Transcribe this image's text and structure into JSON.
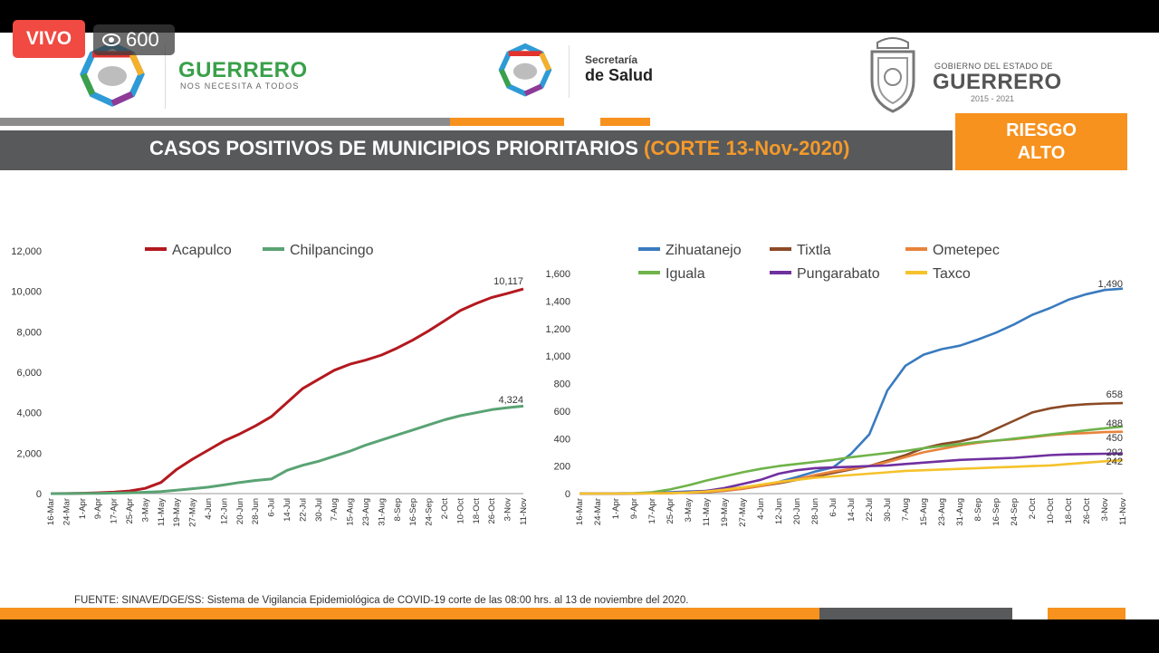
{
  "overlay": {
    "live_label": "VIVO",
    "viewer_count": "600"
  },
  "header": {
    "left_logo_title": "GUERRERO",
    "left_logo_subtitle": "NOS NECESITA A TODOS",
    "center_logo_line1": "Secretaría",
    "center_logo_line2": "de Salud",
    "right_logo_line1": "GOBIERNO DEL ESTADO DE",
    "right_logo_title": "GUERRERO",
    "right_logo_years": "2015 - 2021",
    "title": "CASOS POSITIVOS DE MUNICIPIOS PRIORITARIOS",
    "title_cutoff": "(CORTE 13-Nov-2020)",
    "risk_line1": "RIESGO",
    "risk_line2": "ALTO"
  },
  "colors": {
    "acapulco": "#b3191f",
    "chilpancingo": "#5aa374",
    "zihuatanejo": "#3a7bbf",
    "tixtla": "#8b4a26",
    "ometepec": "#e8833a",
    "iguala": "#6fb34a",
    "pungarabato": "#7030a0",
    "taxco": "#f5c22b",
    "orange": "#f7921e",
    "gray": "#58595b"
  },
  "chart_data": [
    {
      "type": "line",
      "x": [
        "16-Mar",
        "24-Mar",
        "1-Apr",
        "9-Apr",
        "17-Apr",
        "25-Apr",
        "3-May",
        "11-May",
        "19-May",
        "27-May",
        "4-Jun",
        "12-Jun",
        "20-Jun",
        "28-Jun",
        "6-Jul",
        "14-Jul",
        "22-Jul",
        "30-Jul",
        "7-Aug",
        "15-Aug",
        "23-Aug",
        "31-Aug",
        "8-Sep",
        "16-Sep",
        "24-Sep",
        "2-Oct",
        "10-Oct",
        "18-Oct",
        "26-Oct",
        "3-Nov",
        "11-Nov"
      ],
      "series": [
        {
          "name": "Acapulco",
          "values": [
            0,
            5,
            20,
            40,
            70,
            130,
            260,
            550,
            1200,
            1700,
            2150,
            2600,
            2950,
            3350,
            3800,
            4500,
            5200,
            5650,
            6100,
            6400,
            6600,
            6850,
            7200,
            7600,
            8050,
            8550,
            9050,
            9400,
            9700,
            9900,
            10117
          ]
        },
        {
          "name": "Chilpancingo",
          "values": [
            0,
            2,
            8,
            15,
            25,
            40,
            65,
            100,
            170,
            240,
            320,
            430,
            550,
            650,
            720,
            1150,
            1400,
            1600,
            1850,
            2100,
            2400,
            2650,
            2900,
            3150,
            3400,
            3650,
            3850,
            4000,
            4150,
            4250,
            4324
          ]
        }
      ],
      "end_labels": [
        "10,117",
        "4,324"
      ],
      "ylim": [
        0,
        12000
      ],
      "yticks": [
        "0",
        "2,000",
        "4,000",
        "6,000",
        "8,000",
        "10,000",
        "12,000"
      ],
      "legend": "top"
    },
    {
      "type": "line",
      "x": [
        "16-Mar",
        "24-Mar",
        "1-Apr",
        "9-Apr",
        "17-Apr",
        "25-Apr",
        "3-May",
        "11-May",
        "19-May",
        "27-May",
        "4-Jun",
        "12-Jun",
        "20-Jun",
        "28-Jun",
        "6-Jul",
        "14-Jul",
        "22-Jul",
        "30-Jul",
        "7-Aug",
        "15-Aug",
        "23-Aug",
        "31-Aug",
        "8-Sep",
        "16-Sep",
        "24-Sep",
        "2-Oct",
        "10-Oct",
        "18-Oct",
        "26-Oct",
        "3-Nov",
        "11-Nov"
      ],
      "series": [
        {
          "name": "Zihuatanejo",
          "values": [
            0,
            0,
            1,
            2,
            5,
            10,
            15,
            20,
            30,
            45,
            60,
            85,
            120,
            160,
            190,
            290,
            430,
            750,
            930,
            1010,
            1050,
            1075,
            1120,
            1170,
            1230,
            1300,
            1350,
            1410,
            1450,
            1480,
            1490
          ]
        },
        {
          "name": "Tixtla",
          "values": [
            0,
            0,
            0,
            1,
            2,
            4,
            6,
            10,
            20,
            35,
            55,
            75,
            100,
            125,
            150,
            175,
            200,
            240,
            280,
            330,
            360,
            380,
            410,
            470,
            530,
            590,
            620,
            640,
            650,
            655,
            658
          ]
        },
        {
          "name": "Ometepec",
          "values": [
            0,
            0,
            0,
            1,
            2,
            4,
            8,
            12,
            22,
            35,
            55,
            80,
            105,
            135,
            160,
            180,
            200,
            230,
            265,
            300,
            325,
            350,
            370,
            385,
            395,
            410,
            425,
            435,
            440,
            447,
            450
          ]
        },
        {
          "name": "Iguala",
          "values": [
            0,
            0,
            1,
            3,
            10,
            30,
            60,
            95,
            125,
            155,
            180,
            200,
            215,
            230,
            245,
            265,
            280,
            295,
            310,
            330,
            345,
            360,
            375,
            385,
            400,
            415,
            430,
            445,
            460,
            475,
            488
          ]
        },
        {
          "name": "Pungarabato",
          "values": [
            0,
            0,
            0,
            1,
            2,
            5,
            10,
            20,
            40,
            70,
            100,
            145,
            170,
            185,
            190,
            195,
            200,
            205,
            215,
            225,
            235,
            245,
            250,
            255,
            260,
            270,
            280,
            285,
            288,
            290,
            292
          ]
        },
        {
          "name": "Taxco",
          "values": [
            0,
            0,
            0,
            1,
            2,
            4,
            8,
            15,
            28,
            45,
            65,
            85,
            100,
            115,
            125,
            135,
            145,
            155,
            165,
            170,
            175,
            180,
            185,
            190,
            195,
            200,
            205,
            215,
            225,
            235,
            242
          ]
        }
      ],
      "end_labels": [
        "1,490",
        "658",
        "450",
        "488",
        "292",
        "242"
      ],
      "ylim": [
        0,
        1600
      ],
      "yticks": [
        "0",
        "200",
        "400",
        "600",
        "800",
        "1,000",
        "1,200",
        "1,400",
        "1,600"
      ],
      "legend": "top"
    }
  ],
  "footer": {
    "source": "FUENTE: SINAVE/DGE/SS: Sistema de Vigilancia Epidemiológica de COVID-19 corte de las 08:00 hrs. al 13 de noviembre del 2020."
  }
}
